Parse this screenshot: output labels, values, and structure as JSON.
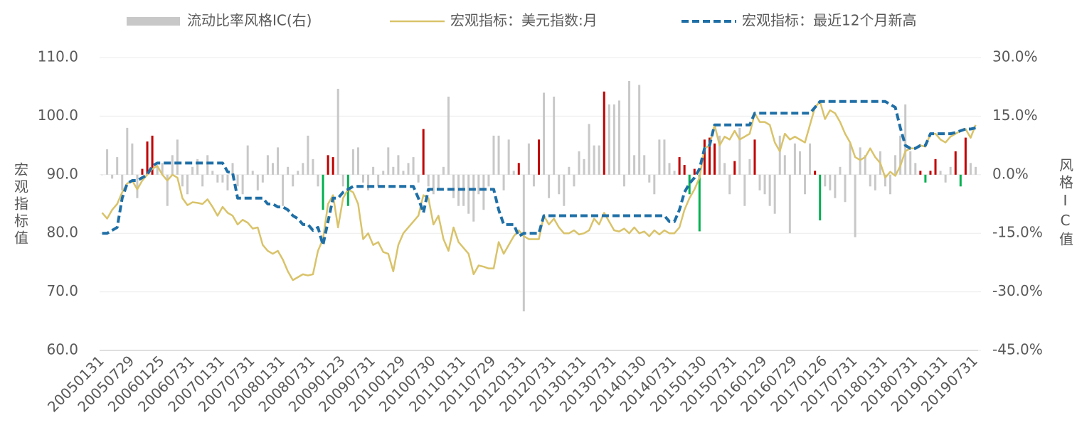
{
  "chart_data": {
    "type": "bar-line",
    "y_label": "宏观指标值",
    "y2_label": "风格IC值",
    "categories": [
      "20050131",
      null,
      null,
      null,
      null,
      null,
      "20050729",
      null,
      null,
      null,
      null,
      null,
      "20060125",
      null,
      null,
      null,
      null,
      null,
      "20060731",
      null,
      null,
      null,
      null,
      null,
      "20070131",
      null,
      null,
      null,
      null,
      null,
      "20070731",
      null,
      null,
      null,
      null,
      null,
      "20080131",
      null,
      null,
      null,
      null,
      null,
      "20080731",
      null,
      null,
      null,
      null,
      null,
      "20090123",
      null,
      null,
      null,
      null,
      null,
      "20090731",
      null,
      null,
      null,
      null,
      null,
      "20100129",
      null,
      null,
      null,
      null,
      null,
      "20100730",
      null,
      null,
      null,
      null,
      null,
      "20110131",
      null,
      null,
      null,
      null,
      null,
      "20110729",
      null,
      null,
      null,
      null,
      null,
      "20120131",
      null,
      null,
      null,
      null,
      null,
      "20120731",
      null,
      null,
      null,
      null,
      null,
      "20130131",
      null,
      null,
      null,
      null,
      null,
      "20130731",
      null,
      null,
      null,
      null,
      null,
      "20140130",
      null,
      null,
      null,
      null,
      null,
      "20140731",
      null,
      null,
      null,
      null,
      null,
      "20150130",
      null,
      null,
      null,
      null,
      null,
      "20150731",
      null,
      null,
      null,
      null,
      null,
      "20160129",
      null,
      null,
      null,
      null,
      null,
      "20160729",
      null,
      null,
      null,
      null,
      null,
      "20170126",
      null,
      null,
      null,
      null,
      null,
      "20170731",
      null,
      null,
      null,
      null,
      null,
      "20180131",
      null,
      null,
      null,
      null,
      null,
      "20180731",
      null,
      null,
      null,
      null,
      null,
      "20190131",
      null,
      null,
      null,
      null,
      null,
      "20190731"
    ],
    "series": [
      {
        "name": "流动比率风格IC(右)",
        "type": "bar",
        "axis": "y2",
        "color": "#c8c8c8",
        "values": [
          0,
          6.5,
          -1,
          4.5,
          -4,
          12,
          8,
          -6,
          1.5,
          8.5,
          10,
          2,
          3,
          -8,
          5,
          9,
          -3,
          -5,
          2,
          4,
          -3,
          5,
          1,
          -2,
          -2,
          -4,
          3,
          -3,
          -5,
          7.5,
          1,
          -4,
          -2,
          5,
          3,
          7,
          -8,
          2,
          -3,
          1,
          3,
          10,
          4,
          -3,
          -9,
          5,
          4.5,
          22,
          -3,
          -8,
          6.5,
          7,
          -2,
          -4,
          2,
          -3,
          1,
          7,
          2,
          5,
          1,
          3,
          4.5,
          -2,
          11.7,
          -3,
          -5,
          -4,
          2,
          20,
          -6,
          -8,
          -8,
          -10,
          -12,
          -5,
          -9,
          -3,
          10,
          10,
          -4,
          9,
          1,
          3,
          -35,
          8,
          -3,
          9,
          21,
          -6,
          20,
          -5,
          -8,
          2,
          -3,
          6,
          4,
          13,
          7.5,
          7.5,
          21.3,
          18,
          18,
          19,
          -3,
          24,
          5,
          23,
          5,
          -2,
          -5,
          9,
          9,
          3,
          1,
          4.5,
          2.5,
          -5,
          1.5,
          -14.5,
          9,
          9.5,
          8,
          10,
          3,
          -5,
          3.5,
          12,
          -8,
          4,
          9,
          -4,
          -5,
          -8,
          -10,
          10,
          5,
          -15,
          8,
          6,
          -5,
          8,
          1,
          -11.7,
          -3,
          -4,
          -6,
          2,
          -7,
          8,
          -16,
          7,
          5,
          -3,
          -4,
          6,
          -3,
          -5,
          5,
          10,
          18,
          6,
          3,
          1,
          -2,
          1,
          4,
          1,
          -2,
          2,
          6,
          -3,
          9.5,
          3,
          2
        ],
        "colors": [
          "#c8c8c8",
          "#c8c8c8",
          "#c8c8c8",
          "#c8c8c8",
          "#c8c8c8",
          "#c8c8c8",
          "#c8c8c8",
          "#c8c8c8",
          "#c00000",
          "#c00000",
          "#c00000",
          "#c8c8c8",
          "#c8c8c8",
          "#c8c8c8",
          "#c8c8c8",
          "#c8c8c8",
          "#c8c8c8",
          "#c8c8c8",
          "#c8c8c8",
          "#c8c8c8",
          "#c8c8c8",
          "#c8c8c8",
          "#c8c8c8",
          "#c8c8c8",
          "#c8c8c8",
          "#c8c8c8",
          "#c8c8c8",
          "#c8c8c8",
          "#c8c8c8",
          "#c8c8c8",
          "#c8c8c8",
          "#c8c8c8",
          "#c8c8c8",
          "#c8c8c8",
          "#c8c8c8",
          "#c8c8c8",
          "#c8c8c8",
          "#c8c8c8",
          "#c8c8c8",
          "#c8c8c8",
          "#c8c8c8",
          "#c8c8c8",
          "#c8c8c8",
          "#c8c8c8",
          "#00b050",
          "#c00000",
          "#c00000",
          "#c8c8c8",
          "#c8c8c8",
          "#00b050",
          "#c8c8c8",
          "#c8c8c8",
          "#c8c8c8",
          "#c8c8c8",
          "#c8c8c8",
          "#c8c8c8",
          "#c8c8c8",
          "#c8c8c8",
          "#c8c8c8",
          "#c8c8c8",
          "#c8c8c8",
          "#c8c8c8",
          "#c8c8c8",
          "#c8c8c8",
          "#c00000",
          "#c8c8c8",
          "#c8c8c8",
          "#c8c8c8",
          "#c8c8c8",
          "#c8c8c8",
          "#c8c8c8",
          "#c8c8c8",
          "#c8c8c8",
          "#c8c8c8",
          "#c8c8c8",
          "#c8c8c8",
          "#c8c8c8",
          "#c8c8c8",
          "#c8c8c8",
          "#c8c8c8",
          "#c8c8c8",
          "#c8c8c8",
          "#c8c8c8",
          "#c00000",
          "#c8c8c8",
          "#c8c8c8",
          "#c8c8c8",
          "#c00000",
          "#c8c8c8",
          "#c8c8c8",
          "#c8c8c8",
          "#c8c8c8",
          "#c8c8c8",
          "#c8c8c8",
          "#c8c8c8",
          "#c8c8c8",
          "#c8c8c8",
          "#c8c8c8",
          "#c8c8c8",
          "#c8c8c8",
          "#c00000",
          "#c8c8c8",
          "#c8c8c8",
          "#c8c8c8",
          "#c8c8c8",
          "#c8c8c8",
          "#c8c8c8",
          "#c8c8c8",
          "#c8c8c8",
          "#c8c8c8",
          "#c8c8c8",
          "#c8c8c8",
          "#c8c8c8",
          "#c8c8c8",
          "#c8c8c8",
          "#c00000",
          "#c00000",
          "#00b050",
          "#c00000",
          "#00b050",
          "#c00000",
          "#c00000",
          "#c00000",
          "#c8c8c8",
          "#c8c8c8",
          "#c8c8c8",
          "#c00000",
          "#c8c8c8",
          "#c8c8c8",
          "#c8c8c8",
          "#c00000",
          "#c8c8c8",
          "#c8c8c8",
          "#c8c8c8",
          "#c8c8c8",
          "#c8c8c8",
          "#c8c8c8",
          "#c8c8c8",
          "#c8c8c8",
          "#c8c8c8",
          "#c8c8c8",
          "#c8c8c8",
          "#c00000",
          "#00b050",
          "#c8c8c8",
          "#c8c8c8",
          "#c8c8c8",
          "#c8c8c8",
          "#c8c8c8",
          "#c8c8c8",
          "#c8c8c8",
          "#c8c8c8",
          "#c8c8c8",
          "#c8c8c8",
          "#c8c8c8",
          "#c8c8c8",
          "#c8c8c8",
          "#c8c8c8",
          "#c8c8c8",
          "#c8c8c8",
          "#c8c8c8",
          "#c8c8c8",
          "#c8c8c8",
          "#c00000",
          "#00b050",
          "#c00000",
          "#c00000",
          "#c8c8c8",
          "#c8c8c8",
          "#c8c8c8",
          "#c00000",
          "#00b050",
          "#c00000",
          "#c8c8c8",
          "#c8c8c8"
        ]
      },
      {
        "name": "宏观指标：美元指数:月",
        "type": "line",
        "color": "#d9c36a",
        "values": [
          83.5,
          82.5,
          84,
          85,
          87,
          88.5,
          89,
          87.5,
          89,
          90,
          91,
          91.5,
          90,
          89,
          90,
          89.5,
          86,
          84.8,
          85.3,
          85.2,
          85,
          85.8,
          84.5,
          83,
          84.5,
          83.5,
          83,
          81.5,
          82.3,
          81.8,
          80.8,
          81,
          78,
          77,
          76.5,
          77,
          75.5,
          73.5,
          72,
          72.5,
          73,
          72.8,
          73,
          77,
          79,
          85,
          86.5,
          81,
          86,
          87.5,
          87,
          85,
          79,
          80,
          78,
          78.5,
          76.8,
          76.5,
          73.5,
          78,
          80,
          81,
          82,
          83,
          86.5,
          86,
          81.5,
          83,
          79,
          77,
          81,
          78.5,
          77.5,
          76.5,
          73,
          74.5,
          74.3,
          74,
          74,
          78.5,
          76.5,
          78,
          79.5,
          80.5,
          79.5,
          79,
          79,
          79,
          83,
          81.5,
          82.5,
          81,
          80,
          80,
          80.5,
          79.8,
          80,
          80.5,
          82.5,
          81.5,
          83.5,
          82,
          80.5,
          80.3,
          80.8,
          80,
          81,
          80,
          80.3,
          79.5,
          80.5,
          79.8,
          80.5,
          80,
          80,
          81,
          84,
          86,
          87.5,
          89.5,
          94.5,
          95,
          98.5,
          95,
          96.5,
          96,
          97.5,
          96,
          96.5,
          97,
          100.5,
          99,
          99,
          98.5,
          95.5,
          94,
          97,
          96,
          96.5,
          96,
          95.5,
          98.5,
          101.5,
          102.5,
          99.5,
          101,
          100.5,
          99,
          97,
          95.5,
          93,
          92.5,
          93,
          94.5,
          93,
          92,
          89.5,
          90.5,
          89.8,
          91.5,
          94,
          94.5,
          94.5,
          95,
          94.8,
          97,
          97,
          96,
          95.5,
          96.5,
          97,
          97.5,
          97.8,
          96.3,
          98.5
        ]
      },
      {
        "name": "宏观指标：最近12个月新高",
        "type": "line",
        "color": "#1f6fa6",
        "dashed": true,
        "values": [
          80,
          80,
          80.5,
          81,
          86,
          88.5,
          89,
          89,
          89.5,
          90,
          91.5,
          92,
          92,
          92,
          92,
          92,
          92,
          92,
          92,
          92,
          92,
          92,
          92,
          92,
          92,
          90.5,
          90.3,
          86,
          86,
          86,
          86,
          86,
          86,
          85,
          85,
          84.5,
          84.5,
          84,
          83,
          82.5,
          81.5,
          81.5,
          80.5,
          81,
          78,
          82,
          86,
          86,
          87,
          87.5,
          88,
          88,
          88,
          88,
          88,
          88,
          88,
          88,
          88,
          88,
          88,
          88,
          88,
          86,
          83.5,
          87.5,
          87.5,
          87.5,
          87.5,
          87.5,
          87.5,
          87.5,
          87.5,
          87.5,
          87.5,
          87.5,
          87.5,
          87.5,
          87.5,
          84,
          81.5,
          81.5,
          81.5,
          79.5,
          80,
          80,
          80,
          80,
          83,
          83,
          83,
          83,
          83,
          83,
          83,
          83,
          83,
          83,
          83,
          83,
          83,
          83,
          83,
          83,
          83,
          83,
          83,
          83,
          83,
          83,
          83,
          83,
          83,
          82,
          82,
          84,
          87,
          88.5,
          89.5,
          91,
          94.5,
          95,
          98.5,
          98.5,
          98.5,
          98.5,
          98.5,
          98.5,
          98.5,
          98.5,
          100.5,
          100.5,
          100.5,
          100.5,
          100.5,
          100.5,
          100.5,
          100.5,
          100.5,
          100.5,
          100.5,
          100.5,
          101.5,
          102.5,
          102.5,
          102.5,
          102.5,
          102.5,
          102.5,
          102.5,
          102.5,
          102.5,
          102.5,
          102.5,
          102.5,
          102.5,
          102.5,
          102,
          101.5,
          98,
          95,
          94.5,
          94.5,
          95,
          95,
          97,
          97,
          97,
          97,
          97,
          97.2,
          97.5,
          97.8,
          97.8,
          98
        ]
      }
    ],
    "ylim": [
      60,
      110
    ],
    "yticks": [
      {
        "value": 60,
        "label": "60.0"
      },
      {
        "value": 70,
        "label": "70.0"
      },
      {
        "value": 80,
        "label": "80.0"
      },
      {
        "value": 90,
        "label": "90.0"
      },
      {
        "value": 100,
        "label": "100.0"
      },
      {
        "value": 110,
        "label": "110.0"
      }
    ],
    "y2lim": [
      -45,
      30
    ],
    "y2ticks": [
      {
        "value": -45,
        "label": "-45.0%"
      },
      {
        "value": -30,
        "label": "-30.0%"
      },
      {
        "value": -15,
        "label": "-15.0%"
      },
      {
        "value": 0,
        "label": "0.0%"
      },
      {
        "value": 15,
        "label": "15.0%"
      },
      {
        "value": 30,
        "label": "30.0%"
      }
    ],
    "grid": true,
    "legend": "top"
  }
}
